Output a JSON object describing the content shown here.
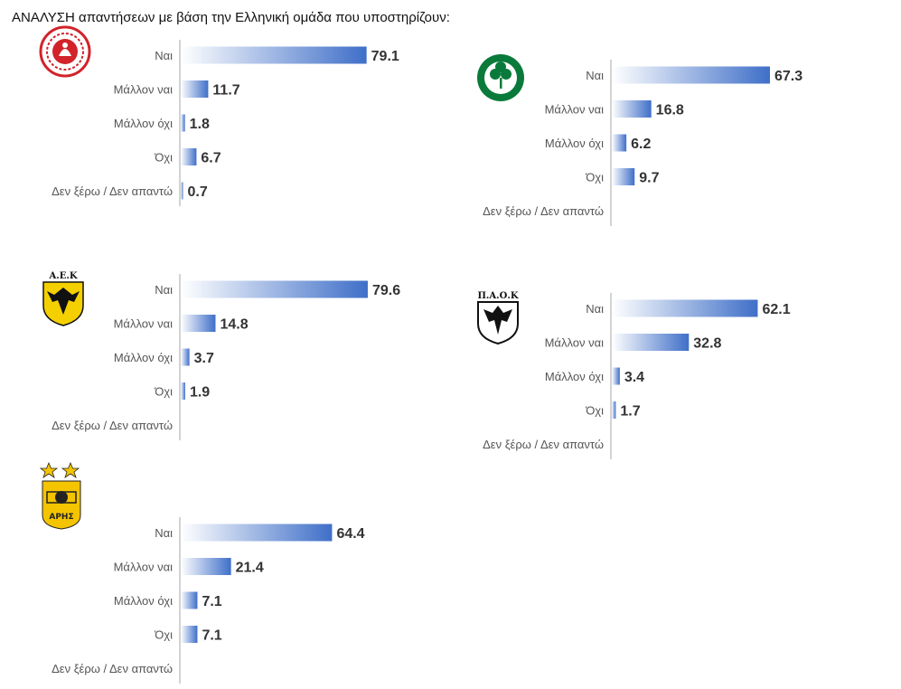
{
  "title": "ΑΝΑΛΥΣΗ απαντήσεων με βάση την Ελληνική ομάδα που υποστηρίζουν:",
  "colors": {
    "bar_dark": "#3f6fc8",
    "bar_light": "#ffffff",
    "axis": "#d3d3d3"
  },
  "logos": [
    {
      "team": "olympiacos",
      "icon": "olympiacos-logo"
    },
    {
      "team": "panathinaikos",
      "icon": "panathinaikos-logo"
    },
    {
      "team": "aek",
      "icon": "aek-logo"
    },
    {
      "team": "paok",
      "icon": "paok-logo"
    },
    {
      "team": "aris",
      "icon": "aris-logo"
    }
  ],
  "chart_data": [
    {
      "type": "bar",
      "orientation": "horizontal",
      "team": "olympiacos",
      "categories": [
        "Ναι",
        "Μάλλον ναι",
        "Μάλλον όχι",
        "Όχι",
        "Δεν ξέρω / Δεν απαντώ"
      ],
      "values": [
        79.1,
        11.7,
        1.8,
        6.7,
        0.7
      ],
      "labels": [
        "79.1",
        "11.7",
        "1.8",
        "6.7",
        "0.7"
      ]
    },
    {
      "type": "bar",
      "orientation": "horizontal",
      "team": "panathinaikos",
      "categories": [
        "Ναι",
        "Μάλλον ναι",
        "Μάλλον όχι",
        "Όχι",
        "Δεν ξέρω / Δεν απαντώ"
      ],
      "values": [
        67.3,
        16.8,
        6.2,
        9.7,
        null
      ],
      "labels": [
        "67.3",
        "16.8",
        "6.2",
        "9.7",
        ""
      ]
    },
    {
      "type": "bar",
      "orientation": "horizontal",
      "team": "aek",
      "categories": [
        "Ναι",
        "Μάλλον ναι",
        "Μάλλον όχι",
        "Όχι",
        "Δεν ξέρω / Δεν απαντώ"
      ],
      "values": [
        79.6,
        14.8,
        3.7,
        1.9,
        null
      ],
      "labels": [
        "79.6",
        "14.8",
        "3.7",
        "1.9",
        ""
      ]
    },
    {
      "type": "bar",
      "orientation": "horizontal",
      "team": "paok",
      "categories": [
        "Ναι",
        "Μάλλον ναι",
        "Μάλλον όχι",
        "Όχι",
        "Δεν ξέρω / Δεν απαντώ"
      ],
      "values": [
        62.1,
        32.8,
        3.4,
        1.7,
        null
      ],
      "labels": [
        "62.1",
        "32.8",
        "3.4",
        "1.7",
        ""
      ]
    },
    {
      "type": "bar",
      "orientation": "horizontal",
      "team": "aris",
      "categories": [
        "Ναι",
        "Μάλλον ναι",
        "Μάλλον όχι",
        "Όχι",
        "Δεν ξέρω / Δεν απαντώ"
      ],
      "values": [
        64.4,
        21.4,
        7.1,
        7.1,
        null
      ],
      "labels": [
        "64.4",
        "21.4",
        "7.1",
        "7.1",
        ""
      ]
    }
  ]
}
